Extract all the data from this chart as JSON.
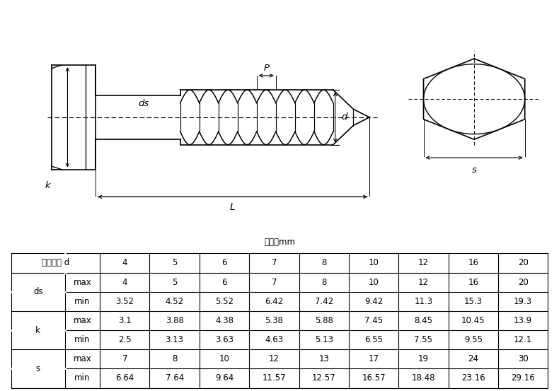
{
  "unit_label": "单位：mm",
  "col_headers": [
    "公称直径 d",
    "4",
    "5",
    "6",
    "7",
    "8",
    "10",
    "12",
    "16",
    "20"
  ],
  "rows": [
    {
      "param": "ds",
      "subparam": "max",
      "values": [
        "4",
        "5",
        "6",
        "7",
        "8",
        "10",
        "12",
        "16",
        "20"
      ]
    },
    {
      "param": "ds",
      "subparam": "min",
      "values": [
        "3.52",
        "4.52",
        "5.52",
        "6.42",
        "7.42",
        "9.42",
        "11.3",
        "15.3",
        "19.3"
      ]
    },
    {
      "param": "k",
      "subparam": "max",
      "values": [
        "3.1",
        "3.88",
        "4.38",
        "5.38",
        "5.88",
        "7.45",
        "8.45",
        "10.45",
        "13.9"
      ]
    },
    {
      "param": "k",
      "subparam": "min",
      "values": [
        "2.5",
        "3.13",
        "3.63",
        "4.63",
        "5.13",
        "6.55",
        "7.55",
        "9.55",
        "12.1"
      ]
    },
    {
      "param": "s",
      "subparam": "max",
      "values": [
        "7",
        "8",
        "10",
        "12",
        "13",
        "17",
        "19",
        "24",
        "30"
      ]
    },
    {
      "param": "s",
      "subparam": "min",
      "values": [
        "6.64",
        "7.64",
        "9.64",
        "11.57",
        "12.57",
        "16.57",
        "18.48",
        "23.16",
        "29.16"
      ]
    }
  ],
  "bg_color": "#ffffff",
  "line_color": "#000000",
  "text_color": "#000000"
}
